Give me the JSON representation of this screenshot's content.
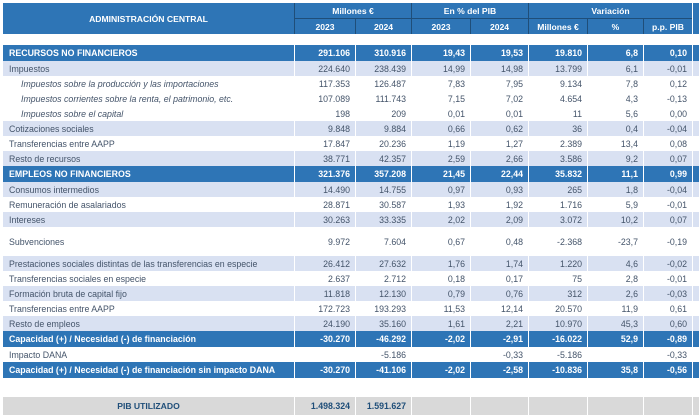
{
  "colors": {
    "blue": "#2E75B6",
    "navy": "#1F4E79",
    "shade": "#D9E1F2",
    "gray": "#D9D9D9",
    "text": "#44546A",
    "white": "#FFFFFF"
  },
  "table": {
    "title": "ADMINISTRACIÓN CENTRAL",
    "col_groups": [
      {
        "label": "Millones €"
      },
      {
        "label": "En % del PIB"
      },
      {
        "label": "Variación"
      }
    ],
    "sub_headers": [
      "2023",
      "2024",
      "2023",
      "2024",
      "Millones €",
      "%",
      "p.p. PIB"
    ],
    "rows": [
      {
        "label": "RECURSOS NO FINANCIEROS",
        "kind": "section",
        "values": [
          "291.106",
          "310.916",
          "19,43",
          "19,53",
          "19.810",
          "6,8",
          "0,10"
        ]
      },
      {
        "label": "Impuestos",
        "kind": "item",
        "shaded": true,
        "values": [
          "224.640",
          "238.439",
          "14,99",
          "14,98",
          "13.799",
          "6,1",
          "-0,01"
        ]
      },
      {
        "label": "Impuestos sobre la producción y las importaciones",
        "kind": "sub",
        "values": [
          "117.353",
          "126.487",
          "7,83",
          "7,95",
          "9.134",
          "7,8",
          "0,12"
        ]
      },
      {
        "label": "Impuestos corrientes sobre la renta, el patrimonio, etc.",
        "kind": "sub",
        "values": [
          "107.089",
          "111.743",
          "7,15",
          "7,02",
          "4.654",
          "4,3",
          "-0,13"
        ]
      },
      {
        "label": "Impuestos sobre el capital",
        "kind": "sub",
        "values": [
          "198",
          "209",
          "0,01",
          "0,01",
          "11",
          "5,6",
          "0,00"
        ]
      },
      {
        "label": "Cotizaciones sociales",
        "kind": "item",
        "shaded": true,
        "values": [
          "9.848",
          "9.884",
          "0,66",
          "0,62",
          "36",
          "0,4",
          "-0,04"
        ]
      },
      {
        "label": "Transferencias entre AAPP",
        "kind": "item",
        "values": [
          "17.847",
          "20.236",
          "1,19",
          "1,27",
          "2.389",
          "13,4",
          "0,08"
        ]
      },
      {
        "label": "Resto de recursos",
        "kind": "item",
        "shaded": true,
        "values": [
          "38.771",
          "42.357",
          "2,59",
          "2,66",
          "3.586",
          "9,2",
          "0,07"
        ]
      },
      {
        "label": "EMPLEOS NO FINANCIEROS",
        "kind": "section",
        "values": [
          "321.376",
          "357.208",
          "21,45",
          "22,44",
          "35.832",
          "11,1",
          "0,99"
        ]
      },
      {
        "label": "Consumos intermedios",
        "kind": "item",
        "shaded": true,
        "values": [
          "14.490",
          "14.755",
          "0,97",
          "0,93",
          "265",
          "1,8",
          "-0,04"
        ]
      },
      {
        "label": "Remuneración de asalariados",
        "kind": "item",
        "values": [
          "28.871",
          "30.587",
          "1,93",
          "1,92",
          "1.716",
          "5,9",
          "-0,01"
        ]
      },
      {
        "label": "Intereses",
        "kind": "item",
        "shaded": true,
        "values": [
          "30.263",
          "33.335",
          "2,02",
          "2,09",
          "3.072",
          "10,2",
          "0,07"
        ]
      },
      {
        "label": "Subvenciones",
        "kind": "item",
        "tall": true,
        "values": [
          "9.972",
          "7.604",
          "0,67",
          "0,48",
          "-2.368",
          "-23,7",
          "-0,19"
        ]
      },
      {
        "label": "Prestaciones sociales distintas de las transferencias en especie",
        "kind": "item",
        "shaded": true,
        "values": [
          "26.412",
          "27.632",
          "1,76",
          "1,74",
          "1.220",
          "4,6",
          "-0,02"
        ]
      },
      {
        "label": "Transferencias sociales en especie",
        "kind": "item",
        "values": [
          "2.637",
          "2.712",
          "0,18",
          "0,17",
          "75",
          "2,8",
          "-0,01"
        ]
      },
      {
        "label": "Formación bruta de capital fijo",
        "kind": "item",
        "shaded": true,
        "values": [
          "11.818",
          "12.130",
          "0,79",
          "0,76",
          "312",
          "2,6",
          "-0,03"
        ]
      },
      {
        "label": "Transferencias entre AAPP",
        "kind": "item",
        "values": [
          "172.723",
          "193.293",
          "11,53",
          "12,14",
          "20.570",
          "11,9",
          "0,61"
        ]
      },
      {
        "label": "Resto de empleos",
        "kind": "item",
        "shaded": true,
        "values": [
          "24.190",
          "35.160",
          "1,61",
          "2,21",
          "10.970",
          "45,3",
          "0,60"
        ]
      },
      {
        "label": "Capacidad (+) / Necesidad (-) de financiación",
        "kind": "section",
        "values": [
          "-30.270",
          "-46.292",
          "-2,02",
          "-2,91",
          "-16.022",
          "52,9",
          "-0,89"
        ]
      },
      {
        "label": "Impacto DANA",
        "kind": "item",
        "values": [
          "",
          "-5.186",
          "",
          "-0,33",
          "-5.186",
          "",
          "-0,33"
        ]
      },
      {
        "label": "Capacidad (+) / Necesidad (-) de financiación  sin impacto DANA",
        "kind": "section",
        "values": [
          "-30.270",
          "-41.106",
          "-2,02",
          "-2,58",
          "-10.836",
          "35,8",
          "-0,56"
        ]
      }
    ],
    "footer": {
      "label": "PIB UTILIZADO",
      "values": [
        "1.498.324",
        "1.591.627"
      ]
    }
  }
}
